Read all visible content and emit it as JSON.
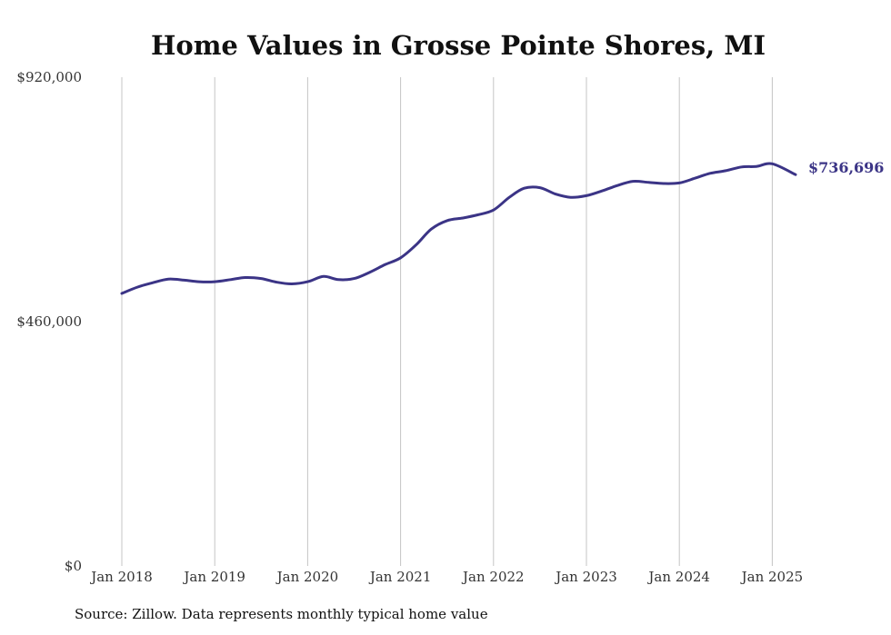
{
  "chart_data": {
    "type": "line",
    "title": "Home Values in Grosse Pointe Shores, MI",
    "xlabel": "",
    "ylabel": "",
    "ylim": [
      0,
      920000
    ],
    "y_ticks": [
      {
        "value": 0,
        "label": "$0"
      },
      {
        "value": 460000,
        "label": "$460,000"
      },
      {
        "value": 920000,
        "label": "$920,000"
      }
    ],
    "x_ticks": [
      {
        "value": 2018.0,
        "label": "Jan 2018"
      },
      {
        "value": 2019.0,
        "label": "Jan 2019"
      },
      {
        "value": 2020.0,
        "label": "Jan 2020"
      },
      {
        "value": 2021.0,
        "label": "Jan 2021"
      },
      {
        "value": 2022.0,
        "label": "Jan 2022"
      },
      {
        "value": 2023.0,
        "label": "Jan 2023"
      },
      {
        "value": 2024.0,
        "label": "Jan 2024"
      },
      {
        "value": 2025.0,
        "label": "Jan 2025"
      }
    ],
    "grid": {
      "vertical": true,
      "horizontal": false
    },
    "line_color": "#3b3486",
    "series": [
      {
        "x": [
          2018.0,
          2018.17,
          2018.33,
          2018.5,
          2018.67,
          2018.83,
          2019.0,
          2019.17,
          2019.33,
          2019.5,
          2019.67,
          2019.83,
          2020.0,
          2020.17,
          2020.33,
          2020.5,
          2020.67,
          2020.83,
          2021.0,
          2021.17,
          2021.33,
          2021.5,
          2021.67,
          2021.83,
          2022.0,
          2022.17,
          2022.33,
          2022.5,
          2022.67,
          2022.83,
          2023.0,
          2023.17,
          2023.33,
          2023.5,
          2023.67,
          2023.83,
          2024.0,
          2024.17,
          2024.33,
          2024.5,
          2024.67,
          2024.83,
          2025.0,
          2025.25
        ],
        "values": [
          513000,
          525000,
          533000,
          540000,
          538000,
          535000,
          535000,
          539000,
          543000,
          541000,
          534000,
          531000,
          535000,
          545000,
          539000,
          541000,
          553000,
          567000,
          580000,
          605000,
          634000,
          650000,
          655000,
          661000,
          670000,
          694000,
          711000,
          712000,
          700000,
          694000,
          697000,
          706000,
          716000,
          724000,
          722000,
          720000,
          721000,
          730000,
          739000,
          744000,
          751000,
          752000,
          757000,
          736696
        ]
      }
    ],
    "end_label": "$736,696"
  },
  "source_note": "Source: Zillow. Data represents monthly typical home value"
}
